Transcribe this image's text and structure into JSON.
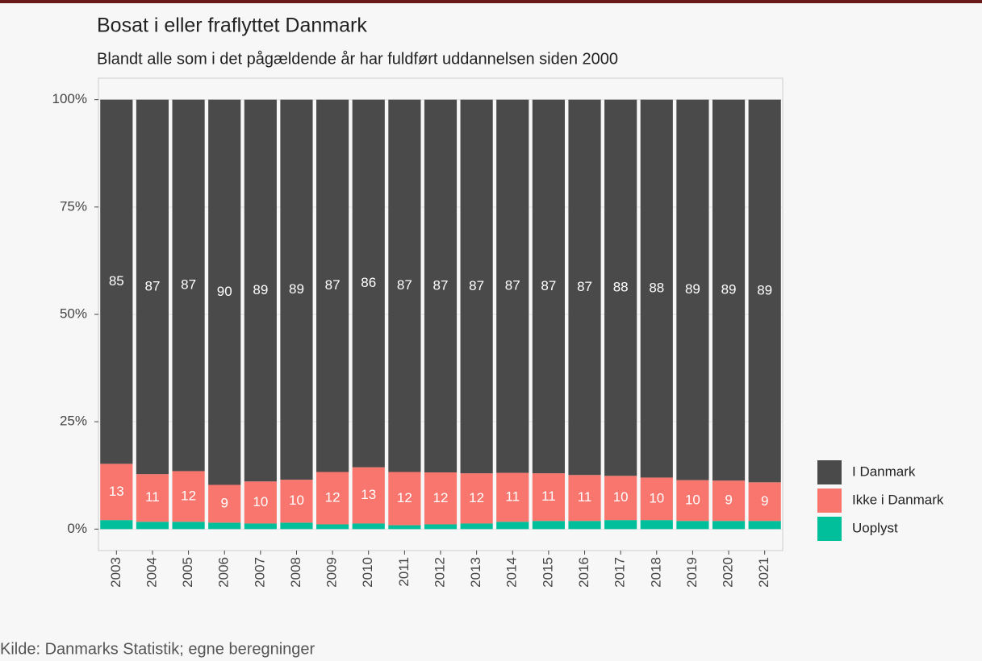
{
  "chart_data": {
    "type": "stacked_bar",
    "title": "Bosat i eller fraflyttet Danmark",
    "subtitle": "Blandt alle som i det pågældende år har fuldført uddannelsen siden 2000",
    "caption": "Kilde: Danmarks Statistik; egne beregninger",
    "categories": [
      "2003",
      "2004",
      "2005",
      "2006",
      "2007",
      "2008",
      "2009",
      "2010",
      "2011",
      "2012",
      "2013",
      "2014",
      "2015",
      "2016",
      "2017",
      "2018",
      "2019",
      "2020",
      "2021"
    ],
    "series": [
      {
        "name": "I Danmark",
        "color": "#4a4a4a",
        "values": [
          84.8,
          87.2,
          86.5,
          89.7,
          88.9,
          88.5,
          86.7,
          85.6,
          86.7,
          86.8,
          87.0,
          86.9,
          87.0,
          87.4,
          87.6,
          88.0,
          88.6,
          88.7,
          89.1
        ],
        "value_labels": [
          "85",
          "87",
          "87",
          "90",
          "89",
          "89",
          "87",
          "86",
          "87",
          "87",
          "87",
          "87",
          "87",
          "87",
          "88",
          "88",
          "89",
          "89",
          "89"
        ]
      },
      {
        "name": "Ikke i Danmark",
        "color": "#f8766d",
        "values": [
          13.1,
          11.1,
          11.8,
          8.8,
          9.8,
          10.0,
          12.2,
          13.1,
          12.4,
          12.1,
          11.7,
          11.4,
          11.1,
          10.7,
          10.3,
          9.9,
          9.5,
          9.4,
          9.0
        ],
        "value_labels": [
          "13",
          "11",
          "12",
          "9",
          "10",
          "10",
          "12",
          "13",
          "12",
          "12",
          "12",
          "11",
          "11",
          "11",
          "10",
          "10",
          "10",
          "9",
          "9"
        ]
      },
      {
        "name": "Uoplyst",
        "color": "#00bf9a",
        "values": [
          2.1,
          1.7,
          1.7,
          1.5,
          1.3,
          1.5,
          1.1,
          1.3,
          0.9,
          1.1,
          1.3,
          1.7,
          1.9,
          1.9,
          2.1,
          2.1,
          1.9,
          1.9,
          1.9
        ]
      }
    ],
    "ylim": [
      -5,
      105
    ],
    "yticks": [
      {
        "value": 0,
        "label": "0%"
      },
      {
        "value": 25,
        "label": "25%"
      },
      {
        "value": 50,
        "label": "50%"
      },
      {
        "value": 75,
        "label": "75%"
      },
      {
        "value": 100,
        "label": "100%"
      }
    ],
    "grid": true
  }
}
